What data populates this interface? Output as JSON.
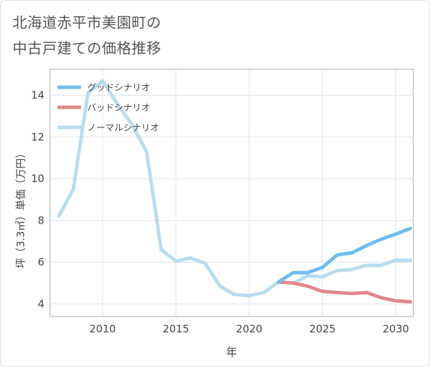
{
  "title_lines": [
    "北海道赤平市美園町の",
    "中古戸建ての価格推移"
  ],
  "chart_data": {
    "type": "line",
    "title": "北海道赤平市美園町の中古戸建ての価格推移",
    "xlabel": "年",
    "ylabel": "坪（3.3㎡）単価（万円）",
    "xlim": [
      2006.4,
      2031.2
    ],
    "ylim": [
      3.4,
      15.25
    ],
    "xticks": [
      2010,
      2015,
      2020,
      2025,
      2030
    ],
    "yticks": [
      4,
      6,
      8,
      10,
      12,
      14
    ],
    "legend_position": "top-left",
    "series": [
      {
        "name": "グッドシナリオ",
        "color": "#6fbcee",
        "x": [
          2022,
          2023,
          2024,
          2025,
          2026,
          2027,
          2028,
          2029,
          2030,
          2031
        ],
        "values": [
          5.05,
          5.5,
          5.5,
          5.75,
          6.35,
          6.45,
          6.8,
          7.1,
          7.35,
          7.62
        ]
      },
      {
        "name": "バッドシナリオ",
        "color": "#e0888d",
        "x": [
          2022,
          2023,
          2024,
          2025,
          2026,
          2027,
          2028,
          2029,
          2030,
          2031
        ],
        "values": [
          5.05,
          5.0,
          4.85,
          4.6,
          4.55,
          4.5,
          4.55,
          4.3,
          4.15,
          4.1
        ]
      },
      {
        "name": "ノーマルシナリオ",
        "color": "#b8dcef",
        "x": [
          2007,
          2008,
          2009,
          2010,
          2011,
          2012,
          2013,
          2014,
          2015,
          2016,
          2017,
          2018,
          2019,
          2020,
          2021,
          2022,
          2023,
          2024,
          2025,
          2026,
          2027,
          2028,
          2029,
          2030,
          2031
        ],
        "values": [
          8.2,
          9.5,
          14.1,
          14.7,
          13.6,
          12.6,
          11.3,
          6.6,
          6.05,
          6.2,
          5.95,
          4.85,
          4.45,
          4.4,
          4.55,
          5.05,
          5.0,
          5.35,
          5.3,
          5.6,
          5.65,
          5.85,
          5.85,
          6.1,
          6.1
        ]
      }
    ]
  }
}
